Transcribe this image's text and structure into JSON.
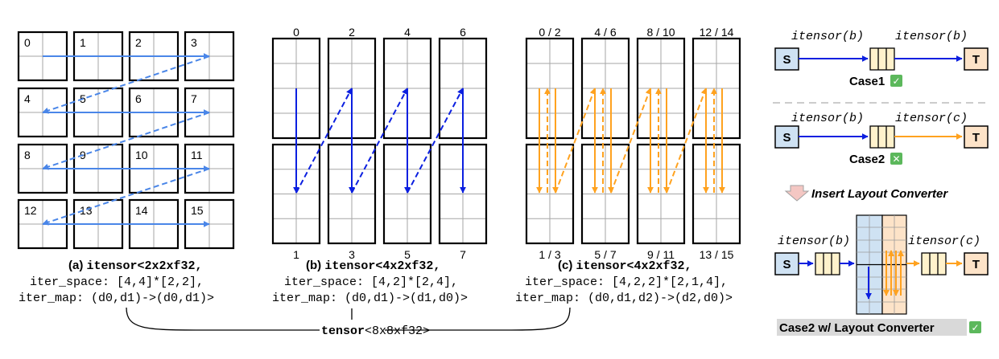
{
  "panel_a": {
    "tile_labels": [
      "0",
      "1",
      "2",
      "3",
      "4",
      "5",
      "6",
      "7",
      "8",
      "9",
      "10",
      "11",
      "12",
      "13",
      "14",
      "15"
    ],
    "caption_prefix": "(a) ",
    "caption_type": "itensor",
    "caption_line1_rest": "<2x2xf32,",
    "caption_line2": "iter_space: [4,4]*[2,2],",
    "caption_line3": "iter_map: (d0,d1)->(d0,d1)>"
  },
  "panel_b": {
    "top_labels": [
      "0",
      "2",
      "4",
      "6"
    ],
    "bottom_labels": [
      "1",
      "3",
      "5",
      "7"
    ],
    "caption_prefix": "(b) ",
    "caption_type": "itensor",
    "caption_line1_rest": "<4x2xf32,",
    "caption_line2": "iter_space: [4,2]*[2,4],",
    "caption_line3": "iter_map: (d0,d1)->(d1,d0)>"
  },
  "panel_c": {
    "top_labels": [
      "0 / 2",
      "4 / 6",
      "8 / 10",
      "12 / 14"
    ],
    "bottom_labels": [
      "1 / 3",
      "5 / 7",
      "9 / 11",
      "13 / 15"
    ],
    "caption_prefix": "(c) ",
    "caption_type": "itensor",
    "caption_line1_rest": "<4x2xf32,",
    "caption_line2": "iter_space: [4,2,2]*[2,1,4],",
    "caption_line3": "iter_map: (d0,d1,d2)->(d2,d0)>"
  },
  "tensor_label": {
    "type": "tensor",
    "rest": "<8x8xf32>"
  },
  "right_panel": {
    "case1": {
      "left_type": "itensor(b)",
      "right_type": "itensor(b)",
      "source": "S",
      "target": "T",
      "label": "Case1",
      "status": "✓"
    },
    "case2": {
      "left_type": "itensor(b)",
      "right_type": "itensor(c)",
      "source": "S",
      "target": "T",
      "label": "Case2",
      "status": "✕"
    },
    "insert_label": "Insert Layout Converter",
    "case3": {
      "left_type": "itensor(b)",
      "right_type": "itensor(c)",
      "source": "S",
      "target": "T",
      "label": "Case2 w/ Layout Converter",
      "status": "✓"
    }
  },
  "colors": {
    "blue_light": "#4a86e8",
    "blue_dark": "#0b1fe0",
    "orange": "#ffa21f",
    "source_fill": "#cfe2f3",
    "target_fill": "#fde3c8",
    "fifo_fill": "#fff2cc",
    "check_green": "#5cb85c"
  }
}
